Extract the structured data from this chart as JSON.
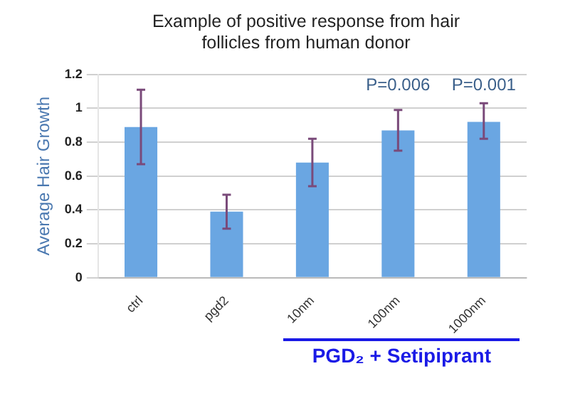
{
  "chart_data": {
    "type": "bar",
    "title": "Example of positive response from hair follicles from human donor",
    "ylabel": "Average Hair Growth",
    "categories": [
      "ctrl",
      "pgd2",
      "10nm",
      "100nm",
      "1000nm"
    ],
    "values": [
      0.89,
      0.39,
      0.68,
      0.87,
      0.92
    ],
    "errors": [
      [
        0.67,
        1.11
      ],
      [
        0.29,
        0.49
      ],
      [
        0.54,
        0.82
      ],
      [
        0.75,
        0.99
      ],
      [
        0.82,
        1.03
      ]
    ],
    "color": "#6aa6e2",
    "ylim": [
      0,
      1.2
    ],
    "yticks": [
      0,
      {
        "value": 0.2,
        "label": "0.2"
      },
      {
        "value": 0.4,
        "label": "0.4"
      },
      {
        "value": 0.6,
        "label": "0.6"
      },
      {
        "value": 0.8,
        "label": "0.8"
      },
      1,
      {
        "value": 1.2,
        "label": "1.2"
      }
    ],
    "grid": "y",
    "annotations": [
      "P=0.006",
      "P=0.001",
      "PGD₂ + Setipiprant"
    ]
  }
}
